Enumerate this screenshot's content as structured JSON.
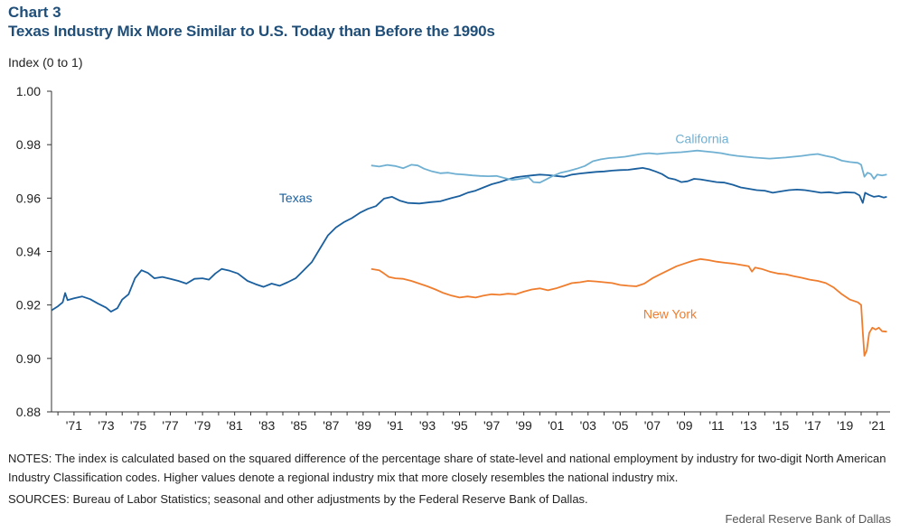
{
  "header": {
    "chart_label": "Chart 3",
    "title": "Texas Industry Mix More Similar to U.S.  Today than Before the 1990s"
  },
  "footer": {
    "notes": "NOTES: The index is calculated based on the squared difference of the percentage share of state-level and national employment by industry for two-digit North American Industry Classification codes. Higher values denote a regional industry mix that more closely resembles the national industry mix.",
    "sources": "SOURCES: Bureau of Labor Statistics; seasonal and other adjustments by the Federal Reserve Bank of Dallas.",
    "credit": "Federal Reserve Bank of Dallas"
  },
  "chart_data": {
    "type": "line",
    "title": "Texas Industry Mix More Similar to U.S.  Today than Before the 1990s",
    "xlabel": "",
    "ylabel": "Index  (0 to 1)",
    "ylim": [
      0.88,
      1.0
    ],
    "xlim": [
      1969.6,
      2021.8
    ],
    "grid": false,
    "legend": "none",
    "y_ticks": [
      0.88,
      0.9,
      0.92,
      0.94,
      0.96,
      0.98,
      1.0
    ],
    "y_tick_labels": [
      "0.88",
      "0.90",
      "0.92",
      "0.94",
      "0.96",
      "0.98",
      "1.00"
    ],
    "x_ticks": [
      1971,
      1973,
      1975,
      1977,
      1979,
      1981,
      1983,
      1985,
      1987,
      1989,
      1991,
      1993,
      1995,
      1997,
      1999,
      2001,
      2003,
      2005,
      2007,
      2009,
      2011,
      2013,
      2015,
      2017,
      2019,
      2021
    ],
    "x_tick_labels": [
      "'71",
      "'73",
      "'75",
      "'77",
      "'79",
      "'81",
      "'83",
      "'85",
      "'87",
      "'89",
      "'91",
      "'93",
      "'95",
      "'97",
      "'99",
      "'01",
      "'03",
      "'05",
      "'07",
      "'09",
      "'11",
      "'13",
      "'15",
      "'17",
      "'19",
      "'21"
    ],
    "series": [
      {
        "name": "Texas",
        "color": "#1a5f9e",
        "label_at": [
          1984.8,
          0.9585
        ],
        "points": [
          [
            1969.6,
            0.918
          ],
          [
            1970.0,
            0.9195
          ],
          [
            1970.3,
            0.921
          ],
          [
            1970.45,
            0.9245
          ],
          [
            1970.6,
            0.9218
          ],
          [
            1971.0,
            0.9225
          ],
          [
            1971.5,
            0.9232
          ],
          [
            1972.0,
            0.9222
          ],
          [
            1972.5,
            0.9205
          ],
          [
            1973.0,
            0.919
          ],
          [
            1973.3,
            0.9175
          ],
          [
            1973.7,
            0.9188
          ],
          [
            1974.0,
            0.922
          ],
          [
            1974.4,
            0.924
          ],
          [
            1974.8,
            0.93
          ],
          [
            1975.2,
            0.933
          ],
          [
            1975.6,
            0.932
          ],
          [
            1976.0,
            0.93
          ],
          [
            1976.5,
            0.9305
          ],
          [
            1977.0,
            0.9298
          ],
          [
            1977.5,
            0.929
          ],
          [
            1978.0,
            0.928
          ],
          [
            1978.5,
            0.9298
          ],
          [
            1979.0,
            0.93
          ],
          [
            1979.4,
            0.9295
          ],
          [
            1979.8,
            0.9318
          ],
          [
            1980.2,
            0.9335
          ],
          [
            1980.7,
            0.9328
          ],
          [
            1981.2,
            0.9318
          ],
          [
            1981.8,
            0.929
          ],
          [
            1982.3,
            0.9278
          ],
          [
            1982.8,
            0.9268
          ],
          [
            1983.3,
            0.928
          ],
          [
            1983.8,
            0.9272
          ],
          [
            1984.3,
            0.9285
          ],
          [
            1984.8,
            0.93
          ],
          [
            1985.3,
            0.933
          ],
          [
            1985.8,
            0.936
          ],
          [
            1986.3,
            0.941
          ],
          [
            1986.8,
            0.946
          ],
          [
            1987.3,
            0.949
          ],
          [
            1987.8,
            0.951
          ],
          [
            1988.3,
            0.9525
          ],
          [
            1988.8,
            0.9545
          ],
          [
            1989.3,
            0.956
          ],
          [
            1989.8,
            0.957
          ],
          [
            1990.3,
            0.9598
          ],
          [
            1990.8,
            0.9605
          ],
          [
            1991.3,
            0.959
          ],
          [
            1991.8,
            0.9582
          ],
          [
            1992.5,
            0.958
          ],
          [
            1993.2,
            0.9585
          ],
          [
            1993.8,
            0.9588
          ],
          [
            1994.5,
            0.96
          ],
          [
            1995.0,
            0.9608
          ],
          [
            1995.5,
            0.962
          ],
          [
            1996.0,
            0.9628
          ],
          [
            1996.5,
            0.964
          ],
          [
            1997.0,
            0.9652
          ],
          [
            1997.5,
            0.966
          ],
          [
            1998.0,
            0.967
          ],
          [
            1998.5,
            0.9678
          ],
          [
            1999.0,
            0.9682
          ],
          [
            1999.5,
            0.9685
          ],
          [
            2000.0,
            0.9688
          ],
          [
            2000.5,
            0.9686
          ],
          [
            2001.0,
            0.9683
          ],
          [
            2001.5,
            0.968
          ],
          [
            2002.0,
            0.9688
          ],
          [
            2002.5,
            0.9692
          ],
          [
            2003.0,
            0.9695
          ],
          [
            2003.5,
            0.9698
          ],
          [
            2004.0,
            0.97
          ],
          [
            2004.5,
            0.9703
          ],
          [
            2005.0,
            0.9705
          ],
          [
            2005.5,
            0.9706
          ],
          [
            2006.0,
            0.971
          ],
          [
            2006.4,
            0.9713
          ],
          [
            2006.8,
            0.9708
          ],
          [
            2007.2,
            0.97
          ],
          [
            2007.6,
            0.969
          ],
          [
            2008.0,
            0.9675
          ],
          [
            2008.4,
            0.967
          ],
          [
            2008.8,
            0.966
          ],
          [
            2009.2,
            0.9663
          ],
          [
            2009.6,
            0.9672
          ],
          [
            2010.0,
            0.967
          ],
          [
            2010.5,
            0.9665
          ],
          [
            2011.0,
            0.966
          ],
          [
            2011.5,
            0.9658
          ],
          [
            2012.0,
            0.965
          ],
          [
            2012.5,
            0.964
          ],
          [
            2013.0,
            0.9635
          ],
          [
            2013.5,
            0.963
          ],
          [
            2014.0,
            0.9628
          ],
          [
            2014.5,
            0.962
          ],
          [
            2015.0,
            0.9625
          ],
          [
            2015.5,
            0.963
          ],
          [
            2016.0,
            0.9632
          ],
          [
            2016.5,
            0.963
          ],
          [
            2017.0,
            0.9625
          ],
          [
            2017.5,
            0.962
          ],
          [
            2018.0,
            0.9622
          ],
          [
            2018.5,
            0.9618
          ],
          [
            2019.0,
            0.9622
          ],
          [
            2019.6,
            0.962
          ],
          [
            2019.9,
            0.961
          ],
          [
            2020.1,
            0.9582
          ],
          [
            2020.25,
            0.962
          ],
          [
            2020.5,
            0.9612
          ],
          [
            2020.8,
            0.9605
          ],
          [
            2021.1,
            0.9608
          ],
          [
            2021.4,
            0.9602
          ],
          [
            2021.6,
            0.9605
          ]
        ]
      },
      {
        "name": "California",
        "color": "#6fb0d2",
        "label_at": [
          2010.1,
          0.9805
        ],
        "points": [
          [
            1989.5,
            0.9722
          ],
          [
            1990.0,
            0.9718
          ],
          [
            1990.5,
            0.9724
          ],
          [
            1991.0,
            0.972
          ],
          [
            1991.5,
            0.9712
          ],
          [
            1992.0,
            0.9725
          ],
          [
            1992.4,
            0.9722
          ],
          [
            1992.8,
            0.971
          ],
          [
            1993.3,
            0.97
          ],
          [
            1993.8,
            0.9693
          ],
          [
            1994.3,
            0.9695
          ],
          [
            1994.8,
            0.969
          ],
          [
            1995.3,
            0.9688
          ],
          [
            1995.8,
            0.9685
          ],
          [
            1996.3,
            0.9683
          ],
          [
            1996.8,
            0.9682
          ],
          [
            1997.3,
            0.9683
          ],
          [
            1997.8,
            0.9675
          ],
          [
            1998.3,
            0.9668
          ],
          [
            1998.8,
            0.9672
          ],
          [
            1999.3,
            0.9678
          ],
          [
            1999.6,
            0.966
          ],
          [
            2000.0,
            0.9658
          ],
          [
            2000.4,
            0.967
          ],
          [
            2000.8,
            0.9683
          ],
          [
            2001.3,
            0.9695
          ],
          [
            2001.8,
            0.9702
          ],
          [
            2002.3,
            0.971
          ],
          [
            2002.8,
            0.972
          ],
          [
            2003.3,
            0.9738
          ],
          [
            2003.8,
            0.9745
          ],
          [
            2004.3,
            0.975
          ],
          [
            2004.8,
            0.9752
          ],
          [
            2005.3,
            0.9755
          ],
          [
            2005.8,
            0.976
          ],
          [
            2006.3,
            0.9765
          ],
          [
            2006.8,
            0.9768
          ],
          [
            2007.3,
            0.9765
          ],
          [
            2007.8,
            0.9768
          ],
          [
            2008.3,
            0.977
          ],
          [
            2008.8,
            0.9772
          ],
          [
            2009.3,
            0.9775
          ],
          [
            2009.8,
            0.9778
          ],
          [
            2010.3,
            0.9775
          ],
          [
            2010.8,
            0.9772
          ],
          [
            2011.3,
            0.9768
          ],
          [
            2011.8,
            0.9762
          ],
          [
            2012.3,
            0.9758
          ],
          [
            2012.8,
            0.9755
          ],
          [
            2013.3,
            0.9752
          ],
          [
            2013.8,
            0.975
          ],
          [
            2014.3,
            0.9748
          ],
          [
            2014.8,
            0.975
          ],
          [
            2015.3,
            0.9752
          ],
          [
            2015.8,
            0.9755
          ],
          [
            2016.3,
            0.9758
          ],
          [
            2016.8,
            0.9762
          ],
          [
            2017.3,
            0.9765
          ],
          [
            2017.8,
            0.9758
          ],
          [
            2018.3,
            0.9752
          ],
          [
            2018.8,
            0.974
          ],
          [
            2019.3,
            0.9735
          ],
          [
            2019.8,
            0.9732
          ],
          [
            2020.0,
            0.9725
          ],
          [
            2020.2,
            0.968
          ],
          [
            2020.4,
            0.9695
          ],
          [
            2020.6,
            0.969
          ],
          [
            2020.8,
            0.9672
          ],
          [
            2021.0,
            0.9688
          ],
          [
            2021.3,
            0.9685
          ],
          [
            2021.6,
            0.9688
          ]
        ]
      },
      {
        "name": "New York",
        "color": "#ef7d2d",
        "label_at": [
          2008.1,
          0.915
        ],
        "points": [
          [
            1989.5,
            0.9335
          ],
          [
            1990.0,
            0.933
          ],
          [
            1990.3,
            0.9318
          ],
          [
            1990.6,
            0.9305
          ],
          [
            1991.0,
            0.93
          ],
          [
            1991.5,
            0.9298
          ],
          [
            1992.0,
            0.929
          ],
          [
            1992.5,
            0.928
          ],
          [
            1993.0,
            0.927
          ],
          [
            1993.5,
            0.9258
          ],
          [
            1994.0,
            0.9245
          ],
          [
            1994.5,
            0.9235
          ],
          [
            1995.0,
            0.9228
          ],
          [
            1995.5,
            0.9232
          ],
          [
            1996.0,
            0.9228
          ],
          [
            1996.5,
            0.9235
          ],
          [
            1997.0,
            0.924
          ],
          [
            1997.5,
            0.9238
          ],
          [
            1998.0,
            0.9242
          ],
          [
            1998.5,
            0.924
          ],
          [
            1999.0,
            0.925
          ],
          [
            1999.5,
            0.9258
          ],
          [
            2000.0,
            0.9262
          ],
          [
            2000.5,
            0.9255
          ],
          [
            2001.0,
            0.9262
          ],
          [
            2001.5,
            0.9272
          ],
          [
            2002.0,
            0.9282
          ],
          [
            2002.5,
            0.9285
          ],
          [
            2003.0,
            0.929
          ],
          [
            2003.5,
            0.9288
          ],
          [
            2004.0,
            0.9285
          ],
          [
            2004.5,
            0.9282
          ],
          [
            2005.0,
            0.9275
          ],
          [
            2005.5,
            0.9272
          ],
          [
            2006.0,
            0.927
          ],
          [
            2006.5,
            0.928
          ],
          [
            2007.0,
            0.93
          ],
          [
            2007.5,
            0.9315
          ],
          [
            2008.0,
            0.933
          ],
          [
            2008.5,
            0.9345
          ],
          [
            2009.0,
            0.9355
          ],
          [
            2009.5,
            0.9365
          ],
          [
            2010.0,
            0.9372
          ],
          [
            2010.5,
            0.9368
          ],
          [
            2011.0,
            0.9362
          ],
          [
            2011.5,
            0.9358
          ],
          [
            2012.0,
            0.9355
          ],
          [
            2012.5,
            0.935
          ],
          [
            2013.0,
            0.9345
          ],
          [
            2013.2,
            0.9325
          ],
          [
            2013.4,
            0.934
          ],
          [
            2013.8,
            0.9335
          ],
          [
            2014.3,
            0.9325
          ],
          [
            2014.8,
            0.9318
          ],
          [
            2015.3,
            0.9315
          ],
          [
            2015.8,
            0.9308
          ],
          [
            2016.3,
            0.9302
          ],
          [
            2016.8,
            0.9295
          ],
          [
            2017.3,
            0.929
          ],
          [
            2017.8,
            0.9282
          ],
          [
            2018.3,
            0.9265
          ],
          [
            2018.8,
            0.924
          ],
          [
            2019.3,
            0.922
          ],
          [
            2019.8,
            0.921
          ],
          [
            2020.0,
            0.92
          ],
          [
            2020.1,
            0.91
          ],
          [
            2020.2,
            0.901
          ],
          [
            2020.35,
            0.903
          ],
          [
            2020.5,
            0.9095
          ],
          [
            2020.7,
            0.9115
          ],
          [
            2020.9,
            0.9108
          ],
          [
            2021.1,
            0.9115
          ],
          [
            2021.3,
            0.9102
          ],
          [
            2021.6,
            0.91
          ]
        ]
      }
    ]
  }
}
